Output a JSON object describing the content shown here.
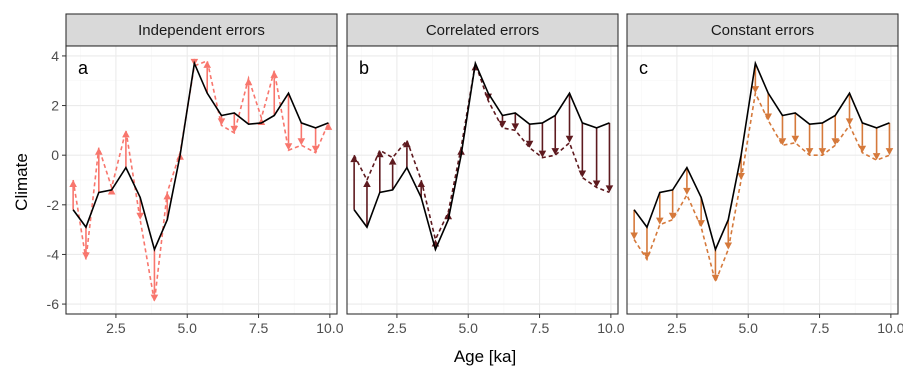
{
  "chart_data": {
    "type": "line",
    "xlabel": "Age [ka]",
    "ylabel": "Climate",
    "xlim": [
      0.75,
      10.25
    ],
    "ylim": [
      -6.4,
      4.4
    ],
    "x_ticks": [
      "2.5",
      "5.0",
      "7.5",
      "10.0"
    ],
    "x_tick_values": [
      2.5,
      5.0,
      7.5,
      10.0
    ],
    "y_ticks": [
      "4",
      "2",
      "0",
      "-2",
      "-4",
      "-6"
    ],
    "y_tick_values": [
      4,
      2,
      0,
      -2,
      -4,
      -6
    ],
    "x": [
      1.0,
      1.45,
      1.9,
      2.35,
      2.85,
      3.35,
      3.85,
      4.3,
      4.75,
      5.25,
      5.7,
      6.2,
      6.65,
      7.15,
      7.6,
      8.05,
      8.55,
      9.0,
      9.5,
      9.95
    ],
    "true_values": [
      -2.2,
      -2.9,
      -1.5,
      -1.4,
      -0.5,
      -1.7,
      -3.8,
      -2.6,
      0.0,
      3.7,
      2.5,
      1.6,
      1.7,
      1.25,
      1.3,
      1.6,
      2.5,
      1.3,
      1.1,
      1.3
    ],
    "grid": true,
    "panels": [
      {
        "strip": "Independent errors",
        "letter": "a",
        "color": "#F8766D",
        "observed": [
          -1.0,
          -4.2,
          0.3,
          -1.3,
          1.0,
          -2.6,
          -5.9,
          -1.5,
          0.1,
          3.6,
          3.8,
          1.2,
          0.9,
          3.1,
          1.5,
          3.4,
          0.2,
          0.4,
          0.1,
          1.3
        ]
      },
      {
        "strip": "Correlated errors",
        "letter": "b",
        "color": "#5E1A1F",
        "observed": [
          0.0,
          -1.0,
          0.2,
          -0.1,
          0.6,
          -1.0,
          -3.4,
          -2.3,
          0.3,
          3.7,
          2.2,
          1.1,
          1.0,
          0.3,
          -0.1,
          0.0,
          0.5,
          -0.9,
          -1.3,
          -1.5
        ]
      },
      {
        "strip": "Constant errors",
        "letter": "c",
        "color": "#D5793B",
        "observed": [
          -3.4,
          -4.2,
          -2.8,
          -2.6,
          -1.6,
          -2.9,
          -5.1,
          -3.8,
          -1.0,
          2.5,
          1.4,
          0.4,
          0.5,
          0.0,
          0.0,
          0.4,
          1.2,
          0.1,
          -0.2,
          0.0
        ]
      }
    ]
  }
}
